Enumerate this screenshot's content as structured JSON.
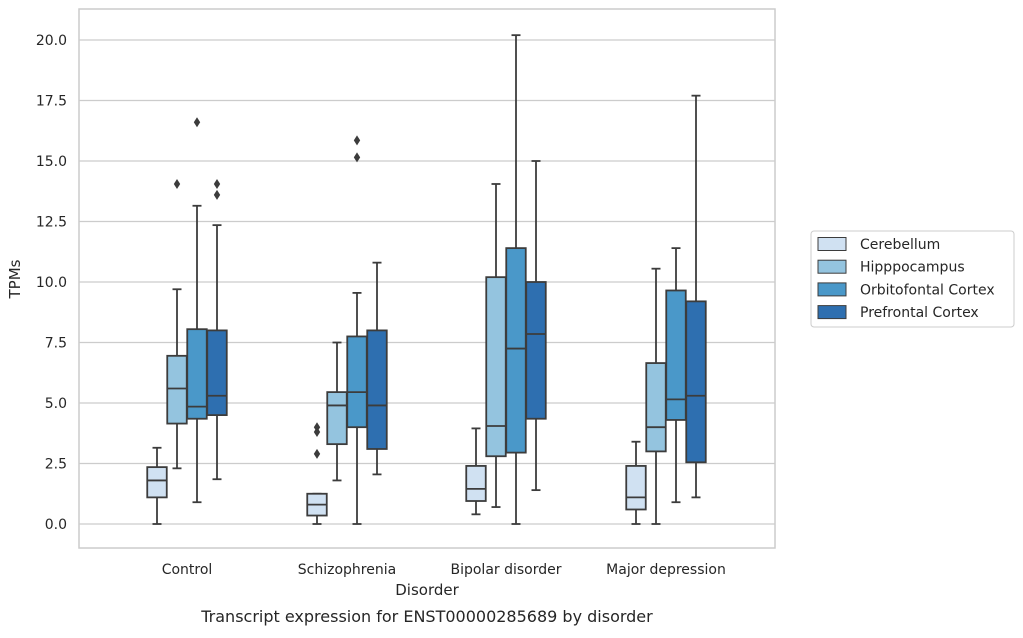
{
  "chart_data": {
    "type": "boxplot",
    "title": "",
    "caption": "Transcript expression for ENST00000285689 by disorder",
    "xlabel": "Disorder",
    "ylabel": "TPMs",
    "ylim": [
      -1.0,
      21.3
    ],
    "yticks": [
      "0.0",
      "2.5",
      "5.0",
      "7.5",
      "10.0",
      "12.5",
      "15.0",
      "17.5",
      "20.0"
    ],
    "ytick_values": [
      0,
      2.5,
      5,
      7.5,
      10,
      12.5,
      15,
      17.5,
      20
    ],
    "grid": "horizontal",
    "legend_position": "right",
    "categories": [
      "Control",
      "Schizophrenia",
      "Bipolar disorder",
      "Major depression"
    ],
    "series": [
      {
        "name": "Cerebellum",
        "color": "#d0e1f2",
        "boxes": [
          {
            "whislo": 0.0,
            "q1": 1.1,
            "med": 1.8,
            "q3": 2.35,
            "whishi": 3.15,
            "fliers": []
          },
          {
            "whislo": 0.0,
            "q1": 0.35,
            "med": 0.8,
            "q3": 1.25,
            "whishi": 1.25,
            "fliers": [
              2.9,
              3.8,
              4.0
            ]
          },
          {
            "whislo": 0.4,
            "q1": 0.95,
            "med": 1.45,
            "q3": 2.4,
            "whishi": 3.95,
            "fliers": []
          },
          {
            "whislo": 0.0,
            "q1": 0.6,
            "med": 1.1,
            "q3": 2.4,
            "whishi": 3.4,
            "fliers": []
          }
        ]
      },
      {
        "name": "Hipppocampus",
        "color": "#94c4df",
        "boxes": [
          {
            "whislo": 2.3,
            "q1": 4.15,
            "med": 5.6,
            "q3": 6.95,
            "whishi": 9.7,
            "fliers": [
              14.05
            ]
          },
          {
            "whislo": 1.8,
            "q1": 3.3,
            "med": 4.9,
            "q3": 5.45,
            "whishi": 7.5,
            "fliers": []
          },
          {
            "whislo": 0.7,
            "q1": 2.8,
            "med": 4.05,
            "q3": 10.2,
            "whishi": 14.05,
            "fliers": []
          },
          {
            "whislo": 0.0,
            "q1": 3.0,
            "med": 4.0,
            "q3": 6.65,
            "whishi": 10.55,
            "fliers": []
          }
        ]
      },
      {
        "name": "Orbitofontal Cortex",
        "color": "#4a98c9",
        "boxes": [
          {
            "whislo": 0.9,
            "q1": 4.35,
            "med": 4.85,
            "q3": 8.05,
            "whishi": 13.15,
            "fliers": [
              16.6
            ]
          },
          {
            "whislo": 0.0,
            "q1": 4.0,
            "med": 5.45,
            "q3": 7.75,
            "whishi": 9.55,
            "fliers": [
              15.15,
              15.85
            ]
          },
          {
            "whislo": 0.0,
            "q1": 2.95,
            "med": 7.25,
            "q3": 11.4,
            "whishi": 20.2,
            "fliers": []
          },
          {
            "whislo": 0.9,
            "q1": 4.3,
            "med": 5.15,
            "q3": 9.65,
            "whishi": 11.4,
            "fliers": []
          }
        ]
      },
      {
        "name": "Prefrontal Cortex",
        "color": "#2e6fb0",
        "boxes": [
          {
            "whislo": 1.85,
            "q1": 4.5,
            "med": 5.3,
            "q3": 8.0,
            "whishi": 12.35,
            "fliers": [
              13.6,
              14.05
            ]
          },
          {
            "whislo": 2.05,
            "q1": 3.1,
            "med": 4.9,
            "q3": 8.0,
            "whishi": 10.8,
            "fliers": []
          },
          {
            "whislo": 1.4,
            "q1": 4.35,
            "med": 7.85,
            "q3": 10.0,
            "whishi": 15.0,
            "fliers": []
          },
          {
            "whislo": 1.1,
            "q1": 2.55,
            "med": 5.3,
            "q3": 9.2,
            "whishi": 17.7,
            "fliers": []
          }
        ]
      }
    ]
  }
}
